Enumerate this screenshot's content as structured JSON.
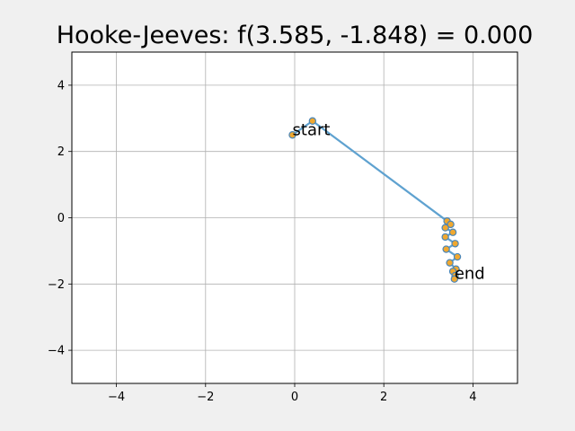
{
  "chart_data": {
    "type": "line",
    "title": "Hooke-Jeeves: f(3.585, -1.848) = 0.000",
    "xlabel": "",
    "ylabel": "",
    "xlim": [
      -5,
      5
    ],
    "ylim": [
      -5,
      5
    ],
    "x_ticks": [
      -4,
      -2,
      0,
      2,
      4
    ],
    "y_ticks": [
      -4,
      -2,
      0,
      2,
      4
    ],
    "x_tick_labels": [
      "−4",
      "−2",
      "0",
      "2",
      "4"
    ],
    "y_tick_labels": [
      "−4",
      "−2",
      "0",
      "2",
      "4"
    ],
    "grid": true,
    "line_color": "#5fa2d0",
    "marker_color": "#f0a830",
    "marker_edge_color": "#4a86b8",
    "path": {
      "x": [
        -0.05,
        0.4,
        3.42,
        3.5,
        3.38,
        3.55,
        3.38,
        3.6,
        3.4,
        3.65,
        3.48,
        3.62,
        3.55,
        3.6,
        3.585
      ],
      "y": [
        2.5,
        2.92,
        -0.1,
        -0.2,
        -0.3,
        -0.44,
        -0.58,
        -0.78,
        -0.95,
        -1.18,
        -1.36,
        -1.55,
        -1.62,
        -1.75,
        -1.848
      ]
    },
    "annotations": [
      {
        "text": "start",
        "x": -0.05,
        "y": 2.5
      },
      {
        "text": "end",
        "x": 3.585,
        "y": -1.848
      }
    ]
  }
}
